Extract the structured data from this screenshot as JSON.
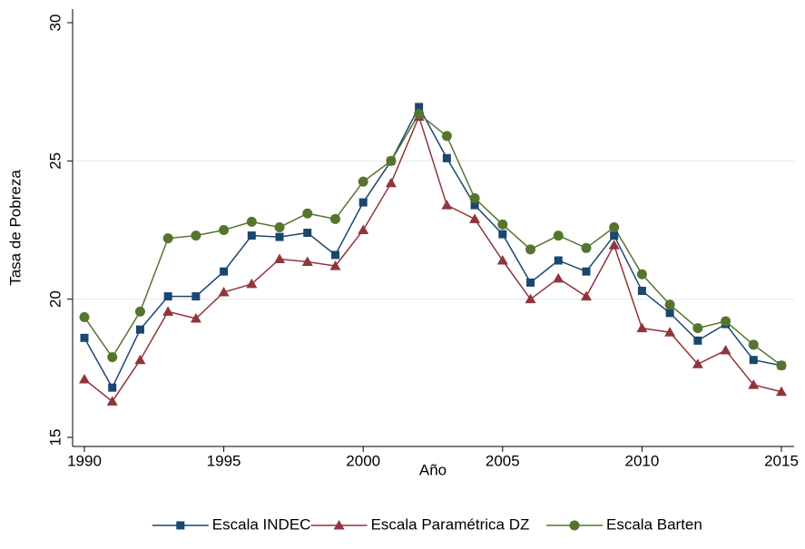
{
  "chart_data": {
    "type": "line",
    "x_label": "Año",
    "y_label": "Tasa de Pobreza",
    "x": [
      1990,
      1991,
      1992,
      1993,
      1994,
      1995,
      1996,
      1997,
      1998,
      1999,
      2000,
      2001,
      2002,
      2003,
      2004,
      2005,
      2006,
      2007,
      2008,
      2009,
      2010,
      2011,
      2012,
      2013,
      2014,
      2015
    ],
    "series": [
      {
        "name": "Escala INDEC",
        "color": "#1a476f",
        "marker": "square",
        "values": [
          18.6,
          16.8,
          18.9,
          20.1,
          20.1,
          21.0,
          22.3,
          22.25,
          22.4,
          21.6,
          23.5,
          25.0,
          26.95,
          25.1,
          23.4,
          22.35,
          20.6,
          21.4,
          21.0,
          22.3,
          20.3,
          19.5,
          18.5,
          19.1,
          17.8,
          17.6
        ]
      },
      {
        "name": "Escala Paramétrica DZ",
        "color": "#90353b",
        "marker": "triangle",
        "values": [
          17.1,
          16.3,
          17.8,
          19.55,
          19.3,
          20.25,
          20.55,
          21.45,
          21.35,
          21.2,
          22.5,
          24.2,
          26.6,
          23.4,
          22.9,
          21.4,
          20.0,
          20.75,
          20.1,
          21.95,
          18.95,
          18.8,
          17.65,
          18.15,
          16.9,
          16.65
        ]
      },
      {
        "name": "Escala Barten",
        "color": "#55752f",
        "marker": "circle",
        "values": [
          19.35,
          17.9,
          19.55,
          22.2,
          22.3,
          22.5,
          22.8,
          22.6,
          23.1,
          22.9,
          24.25,
          25.0,
          26.7,
          25.9,
          23.65,
          22.7,
          21.8,
          22.3,
          21.85,
          22.6,
          20.9,
          19.8,
          18.95,
          19.2,
          18.35,
          17.6
        ]
      }
    ],
    "xlim": [
      1990,
      2015
    ],
    "xticks": [
      1990,
      1995,
      2000,
      2005,
      2010,
      2015
    ],
    "ylim": [
      15,
      30
    ],
    "yticks": [
      15,
      20,
      25,
      30
    ],
    "grid": true,
    "legend": "bottom"
  }
}
